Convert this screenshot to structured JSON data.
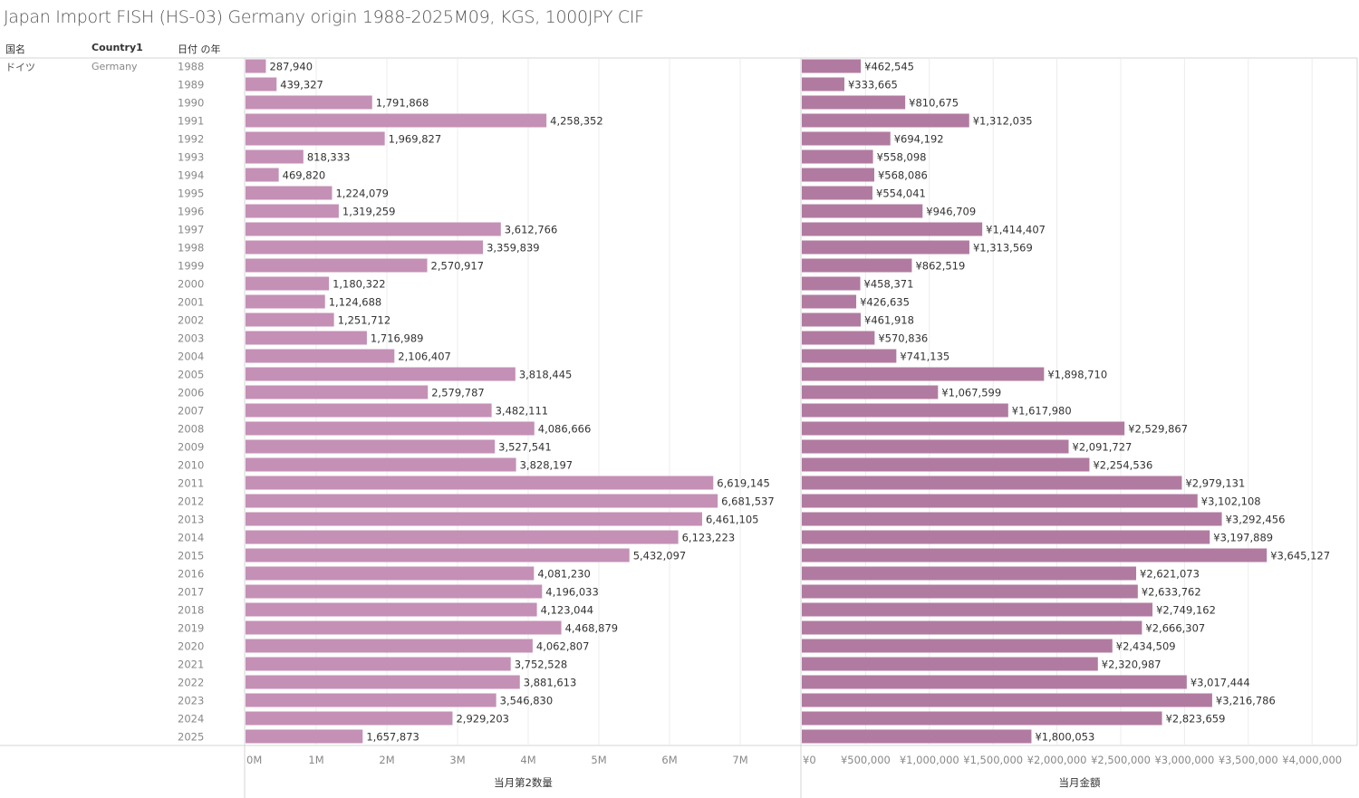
{
  "title": "Japan Import FISH (HS-03) Germany origin 1988-2025M09, KGS, 1000JPY CIF",
  "headers": {
    "country_jp": "国名",
    "country1": "Country1",
    "year": "日付 の年"
  },
  "row_header": {
    "country_jp": "ドイツ",
    "country1": "Germany"
  },
  "colors": {
    "quantity_bar": "#c490b6",
    "amount_bar": "#b17ba1"
  },
  "chart_data": [
    {
      "type": "bar",
      "orientation": "horizontal",
      "xlabel": "当月第2数量",
      "xlim": [
        0,
        7800000
      ],
      "ticks": [
        0,
        1000000,
        2000000,
        3000000,
        4000000,
        5000000,
        6000000,
        7000000
      ],
      "tick_labels": [
        "0M",
        "1M",
        "2M",
        "3M",
        "4M",
        "5M",
        "6M",
        "7M"
      ],
      "categories": [
        "1988",
        "1989",
        "1990",
        "1991",
        "1992",
        "1993",
        "1994",
        "1995",
        "1996",
        "1997",
        "1998",
        "1999",
        "2000",
        "2001",
        "2002",
        "2003",
        "2004",
        "2005",
        "2006",
        "2007",
        "2008",
        "2009",
        "2010",
        "2011",
        "2012",
        "2013",
        "2014",
        "2015",
        "2016",
        "2017",
        "2018",
        "2019",
        "2020",
        "2021",
        "2022",
        "2023",
        "2024",
        "2025"
      ],
      "values": [
        287940,
        439327,
        1791868,
        4258352,
        1969827,
        818333,
        469820,
        1224079,
        1319259,
        3612766,
        3359839,
        2570917,
        1180322,
        1124688,
        1251712,
        1716989,
        2106407,
        3818445,
        2579787,
        3482111,
        4086666,
        3527541,
        3828197,
        6619145,
        6681537,
        6461105,
        6123223,
        5432097,
        4081230,
        4196033,
        4123044,
        4468879,
        4062807,
        3752528,
        3881613,
        3546830,
        2929203,
        1657873
      ],
      "grid": true
    },
    {
      "type": "bar",
      "orientation": "horizontal",
      "xlabel": "当月金額",
      "xlim": [
        0,
        4350000
      ],
      "ticks": [
        0,
        500000,
        1000000,
        1500000,
        2000000,
        2500000,
        3000000,
        3500000,
        4000000
      ],
      "tick_labels": [
        "¥0",
        "¥500,000",
        "¥1,000,000",
        "¥1,500,000",
        "¥2,000,000",
        "¥2,500,000",
        "¥3,000,000",
        "¥3,500,000",
        "¥4,000,000"
      ],
      "values": [
        462545,
        333665,
        810675,
        1312035,
        694192,
        558098,
        568086,
        554041,
        946709,
        1414407,
        1313569,
        862519,
        458371,
        426635,
        461918,
        570836,
        741135,
        1898710,
        1067599,
        1617980,
        2529867,
        2091727,
        2254536,
        2979131,
        3102108,
        3292456,
        3197889,
        3645127,
        2621073,
        2633762,
        2749162,
        2666307,
        2434509,
        2320987,
        3017444,
        3216786,
        2823659,
        1800053
      ],
      "value_prefix": "¥",
      "grid": true
    }
  ]
}
